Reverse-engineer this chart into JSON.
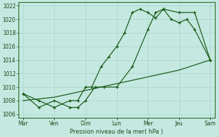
{
  "xlabel": "Pression niveau de la mer( hPa )",
  "background_color": "#c5e8e0",
  "grid_color": "#a8d4c8",
  "line_color": "#1a5c1a",
  "ylim": [
    1005.5,
    1022.5
  ],
  "yticks": [
    1006,
    1008,
    1010,
    1012,
    1014,
    1016,
    1018,
    1020,
    1022
  ],
  "days": [
    "Mar",
    "Ven",
    "Dim",
    "Lun",
    "Mer",
    "Jeu",
    "Sam"
  ],
  "day_x": [
    0,
    1,
    2,
    3,
    4,
    5,
    6
  ],
  "xlim": [
    -0.15,
    6.15
  ],
  "line1_x": [
    0,
    0.5,
    1.0,
    1.5,
    1.75,
    2.0,
    2.2,
    2.5,
    2.75,
    3.0,
    3.25,
    3.5,
    3.75,
    4.0,
    4.25,
    4.5,
    5.0,
    5.5,
    6.0
  ],
  "line1_y": [
    1009,
    1008,
    1007,
    1008,
    1008,
    1010,
    1010,
    1013,
    1014.5,
    1016,
    1018,
    1021,
    1021.5,
    1021,
    1020.2,
    1021.5,
    1021,
    1021,
    1014
  ],
  "line2_x": [
    0,
    0.5,
    1.0,
    1.5,
    1.75,
    2.0,
    2.3,
    2.6,
    3.0,
    3.5,
    4.0,
    4.25,
    4.5,
    4.75,
    5.0,
    5.25,
    5.5,
    6.0
  ],
  "line2_y": [
    1009,
    1007,
    1008,
    1007,
    1007,
    1008,
    1010,
    1010,
    1010,
    1013,
    1018.5,
    1021,
    1021.5,
    1020,
    1019.5,
    1020,
    1018.5,
    1014
  ],
  "line3_x": [
    0,
    1,
    2,
    3,
    4,
    5,
    6
  ],
  "line3_y": [
    1008,
    1008.5,
    1009.5,
    1010.5,
    1011.5,
    1012.5,
    1014
  ]
}
